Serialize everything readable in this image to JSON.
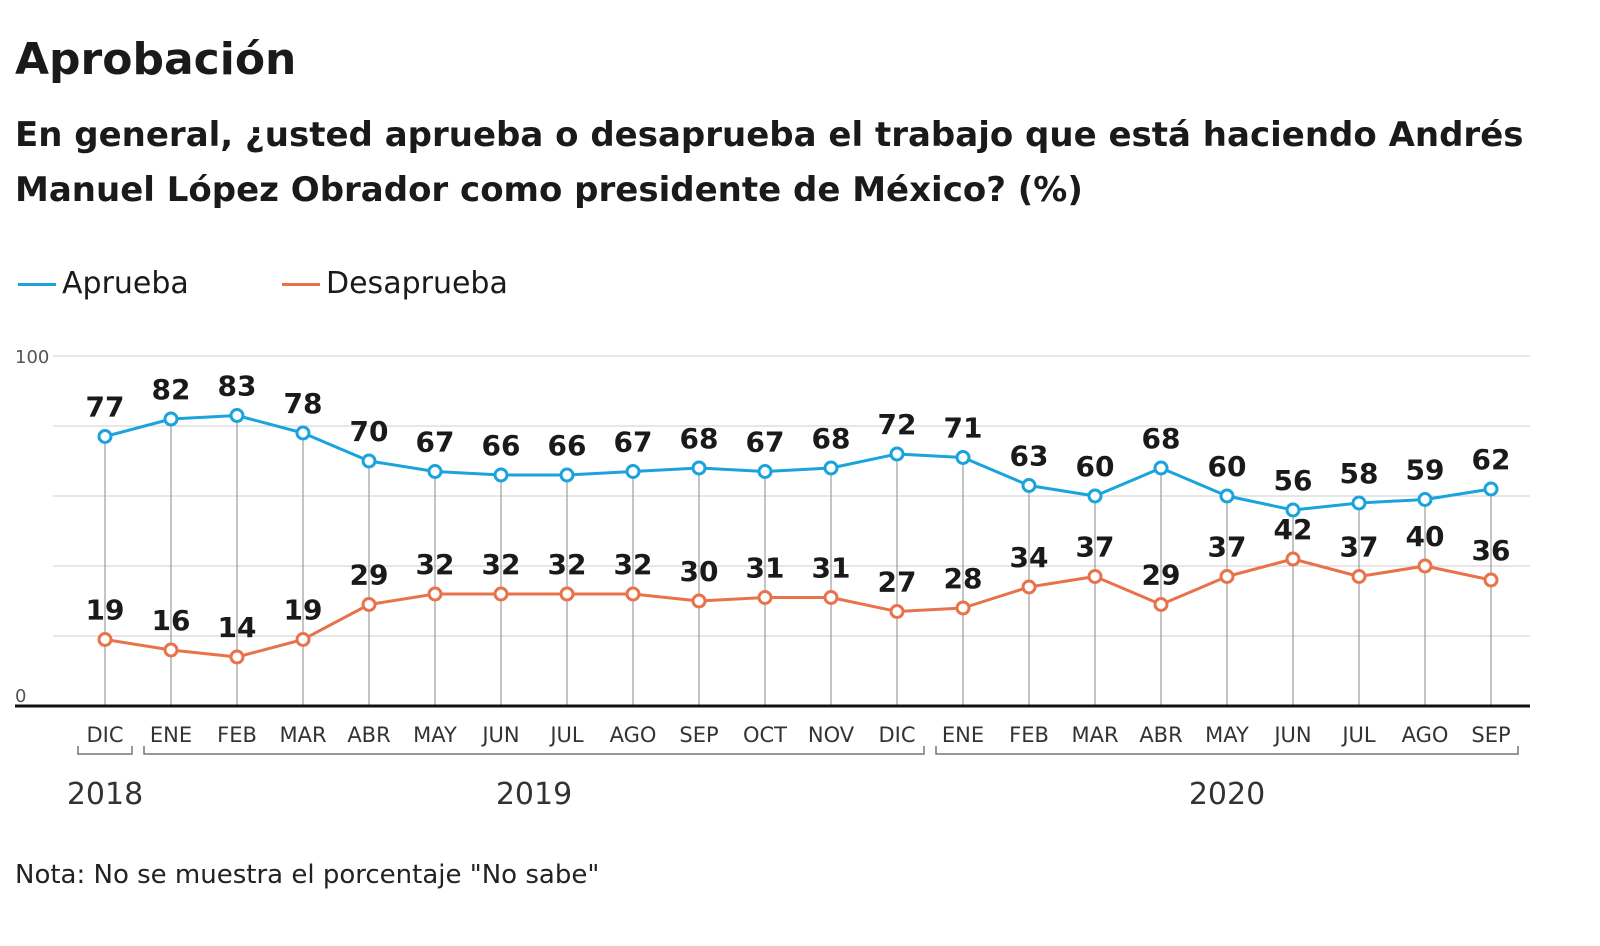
{
  "title": "Aprobación",
  "subtitle": "En general, ¿usted aprueba o desaprueba el trabajo que está haciendo Andrés Manuel López Obrador como presidente de México?  (%)",
  "legend": [
    {
      "label": "Aprueba",
      "color": "#1aa3dc"
    },
    {
      "label": "Desaprueba",
      "color": "#e8734a"
    }
  ],
  "note": "Nota: No se muestra el porcentaje \"No sabe\"",
  "chart_data": {
    "type": "line",
    "categories": [
      "DIC",
      "ENE",
      "FEB",
      "MAR",
      "ABR",
      "MAY",
      "JUN",
      "JUL",
      "AGO",
      "SEP",
      "OCT",
      "NOV",
      "DIC",
      "ENE",
      "FEB",
      "MAR",
      "ABR",
      "MAY",
      "JUN",
      "JUL",
      "AGO",
      "SEP"
    ],
    "series": [
      {
        "name": "Aprueba",
        "color": "#1aa3dc",
        "values": [
          77,
          82,
          83,
          78,
          70,
          67,
          66,
          66,
          67,
          68,
          67,
          68,
          72,
          71,
          63,
          60,
          68,
          60,
          56,
          58,
          59,
          62
        ]
      },
      {
        "name": "Desaprueba",
        "color": "#e8734a",
        "values": [
          19,
          16,
          14,
          19,
          29,
          32,
          32,
          32,
          32,
          30,
          31,
          31,
          27,
          28,
          34,
          37,
          29,
          37,
          42,
          37,
          40,
          36
        ]
      }
    ],
    "ylim": [
      0,
      100
    ],
    "y_ticks": [
      "0",
      "100"
    ],
    "grid": true,
    "year_groups": [
      {
        "label": "2018",
        "start": 0,
        "end": 0
      },
      {
        "label": "2019",
        "start": 1,
        "end": 12
      },
      {
        "label": "2020",
        "start": 13,
        "end": 21
      }
    ]
  }
}
